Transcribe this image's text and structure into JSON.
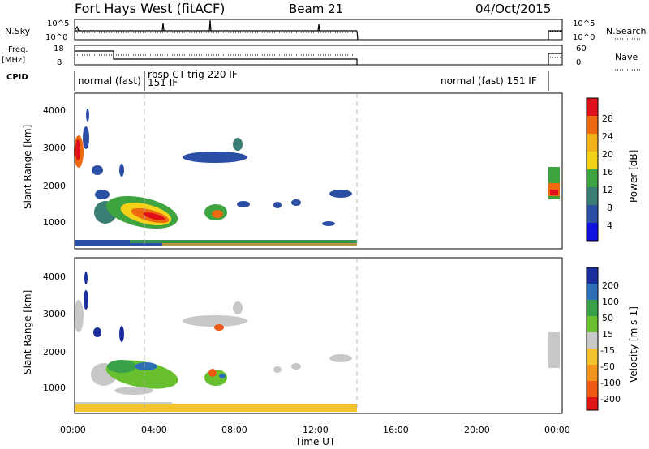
{
  "header": {
    "site": "Fort Hays West (fitACF)",
    "beam": "Beam 21",
    "date": "04/Oct/2015"
  },
  "strip_labels": {
    "nsky": "N.Sky",
    "nsearch": "N.Search",
    "freq": "Freq.",
    "freq_unit": "[MHz]",
    "nave": "Nave",
    "cpid": "CPID"
  },
  "strip_ticks": {
    "noise_left": [
      "10^5",
      "10^0"
    ],
    "noise_right": [
      "10^5",
      "10^0"
    ],
    "freq_left": [
      "18",
      "8"
    ],
    "nave_right": [
      "60",
      "0"
    ]
  },
  "cpid_segments": [
    {
      "label": "normal (fast)",
      "start_hr": 0.0,
      "end_hr": 3.5
    },
    {
      "label": "rbsp CT-trig 220 IF",
      "start_hr": 3.5,
      "end_hr": 14.0
    },
    {
      "label": "151 IF",
      "start_hr": 3.5,
      "end_hr": 14.0
    },
    {
      "label": "normal (fast) 151 IF",
      "start_hr": 14.0,
      "end_hr": 24.0
    }
  ],
  "chart_data": [
    {
      "type": "heatmap",
      "panel": "power",
      "ylabel": "Slant Range [km]",
      "xlim": [
        0,
        24
      ],
      "ylim": [
        180,
        4500
      ],
      "yticks": [
        "1000",
        "2000",
        "3000",
        "4000"
      ],
      "colorbar": {
        "label": "Power [dB]",
        "ticks": [
          "28",
          "24",
          "20",
          "16",
          "12",
          "8",
          "4"
        ],
        "colors": [
          "#e0101a",
          "#ee6a10",
          "#f1b21a",
          "#f4d21a",
          "#3ea43f",
          "#3a7d74",
          "#2b4fa5",
          "#1010e0"
        ]
      }
    },
    {
      "type": "heatmap",
      "panel": "velocity",
      "ylabel": "Slant Range [km]",
      "xlabel": "Time UT",
      "xlim": [
        0,
        24
      ],
      "ylim": [
        180,
        4500
      ],
      "xticks": [
        "00:00",
        "04:00",
        "08:00",
        "12:00",
        "16:00",
        "20:00",
        "00:00"
      ],
      "yticks": [
        "1000",
        "2000",
        "3000",
        "4000"
      ],
      "colorbar": {
        "label": "Velocity [m s-1]",
        "ticks": [
          "200",
          "100",
          "50",
          "15",
          "-15",
          "-50",
          "-100",
          "-200"
        ],
        "colors": [
          "#1a2e9c",
          "#2c6fb6",
          "#39a04a",
          "#69c02f",
          "#c8c8c8",
          "#f2c32a",
          "#f2941a",
          "#ee5a14",
          "#e01414"
        ]
      }
    }
  ]
}
